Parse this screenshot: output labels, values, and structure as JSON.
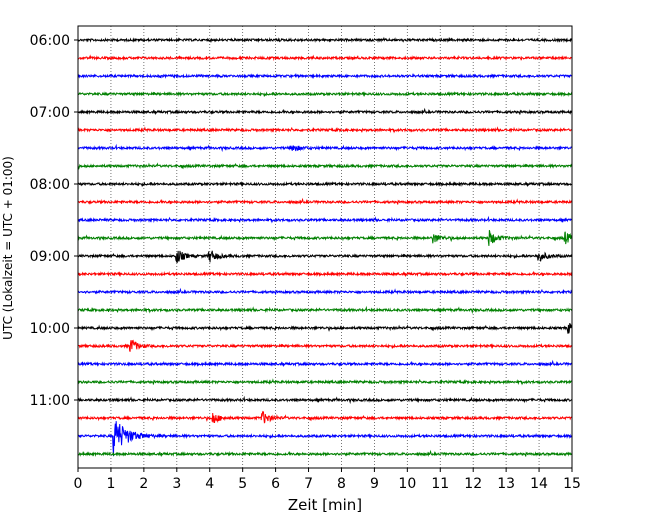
{
  "chart_data": {
    "type": "line",
    "title": "",
    "xlabel": "Zeit  [min]",
    "ylabel": "UTC (Lokalzeit = UTC + 01:00)",
    "xlim": [
      0,
      15
    ],
    "x_ticks": [
      0,
      1,
      2,
      3,
      4,
      5,
      6,
      7,
      8,
      9,
      10,
      11,
      12,
      13,
      14,
      15
    ],
    "y_tick_labels": [
      "06:00",
      "07:00",
      "08:00",
      "09:00",
      "10:00",
      "11:00"
    ],
    "grid": "vertical dotted at each minute",
    "trace_colors": [
      "#000000",
      "#ff0000",
      "#0000ff",
      "#008000"
    ],
    "trace_interval_minutes": 15,
    "traces": [
      {
        "start": "06:00",
        "color": "#000000"
      },
      {
        "start": "06:15",
        "color": "#ff0000"
      },
      {
        "start": "06:30",
        "color": "#0000ff"
      },
      {
        "start": "06:45",
        "color": "#008000"
      },
      {
        "start": "07:00",
        "color": "#000000"
      },
      {
        "start": "07:15",
        "color": "#ff0000"
      },
      {
        "start": "07:30",
        "color": "#0000ff",
        "events": [
          {
            "t": 6.5,
            "amp": 0.25
          }
        ]
      },
      {
        "start": "07:45",
        "color": "#008000"
      },
      {
        "start": "08:00",
        "color": "#000000"
      },
      {
        "start": "08:15",
        "color": "#ff0000"
      },
      {
        "start": "08:30",
        "color": "#0000ff"
      },
      {
        "start": "08:45",
        "color": "#008000",
        "events": [
          {
            "t": 12.5,
            "amp": 0.45
          },
          {
            "t": 10.8,
            "amp": 0.3
          },
          {
            "t": 14.8,
            "amp": 0.35
          }
        ]
      },
      {
        "start": "09:00",
        "color": "#000000",
        "events": [
          {
            "t": 3.0,
            "amp": 0.45
          },
          {
            "t": 4.0,
            "amp": 0.4
          },
          {
            "t": 14.0,
            "amp": 0.35
          }
        ]
      },
      {
        "start": "09:15",
        "color": "#ff0000"
      },
      {
        "start": "09:30",
        "color": "#0000ff"
      },
      {
        "start": "09:45",
        "color": "#008000"
      },
      {
        "start": "10:00",
        "color": "#000000",
        "events": [
          {
            "t": 14.9,
            "amp": 0.3
          }
        ]
      },
      {
        "start": "10:15",
        "color": "#ff0000",
        "events": [
          {
            "t": 1.6,
            "amp": 0.45
          }
        ]
      },
      {
        "start": "10:30",
        "color": "#0000ff"
      },
      {
        "start": "10:45",
        "color": "#008000"
      },
      {
        "start": "11:00",
        "color": "#000000"
      },
      {
        "start": "11:15",
        "color": "#ff0000",
        "events": [
          {
            "t": 4.1,
            "amp": 0.35
          },
          {
            "t": 5.6,
            "amp": 0.4
          }
        ]
      },
      {
        "start": "11:30",
        "color": "#0000ff",
        "events": [
          {
            "t": 1.1,
            "amp": 1.2
          }
        ]
      },
      {
        "start": "11:45",
        "color": "#008000"
      }
    ]
  }
}
